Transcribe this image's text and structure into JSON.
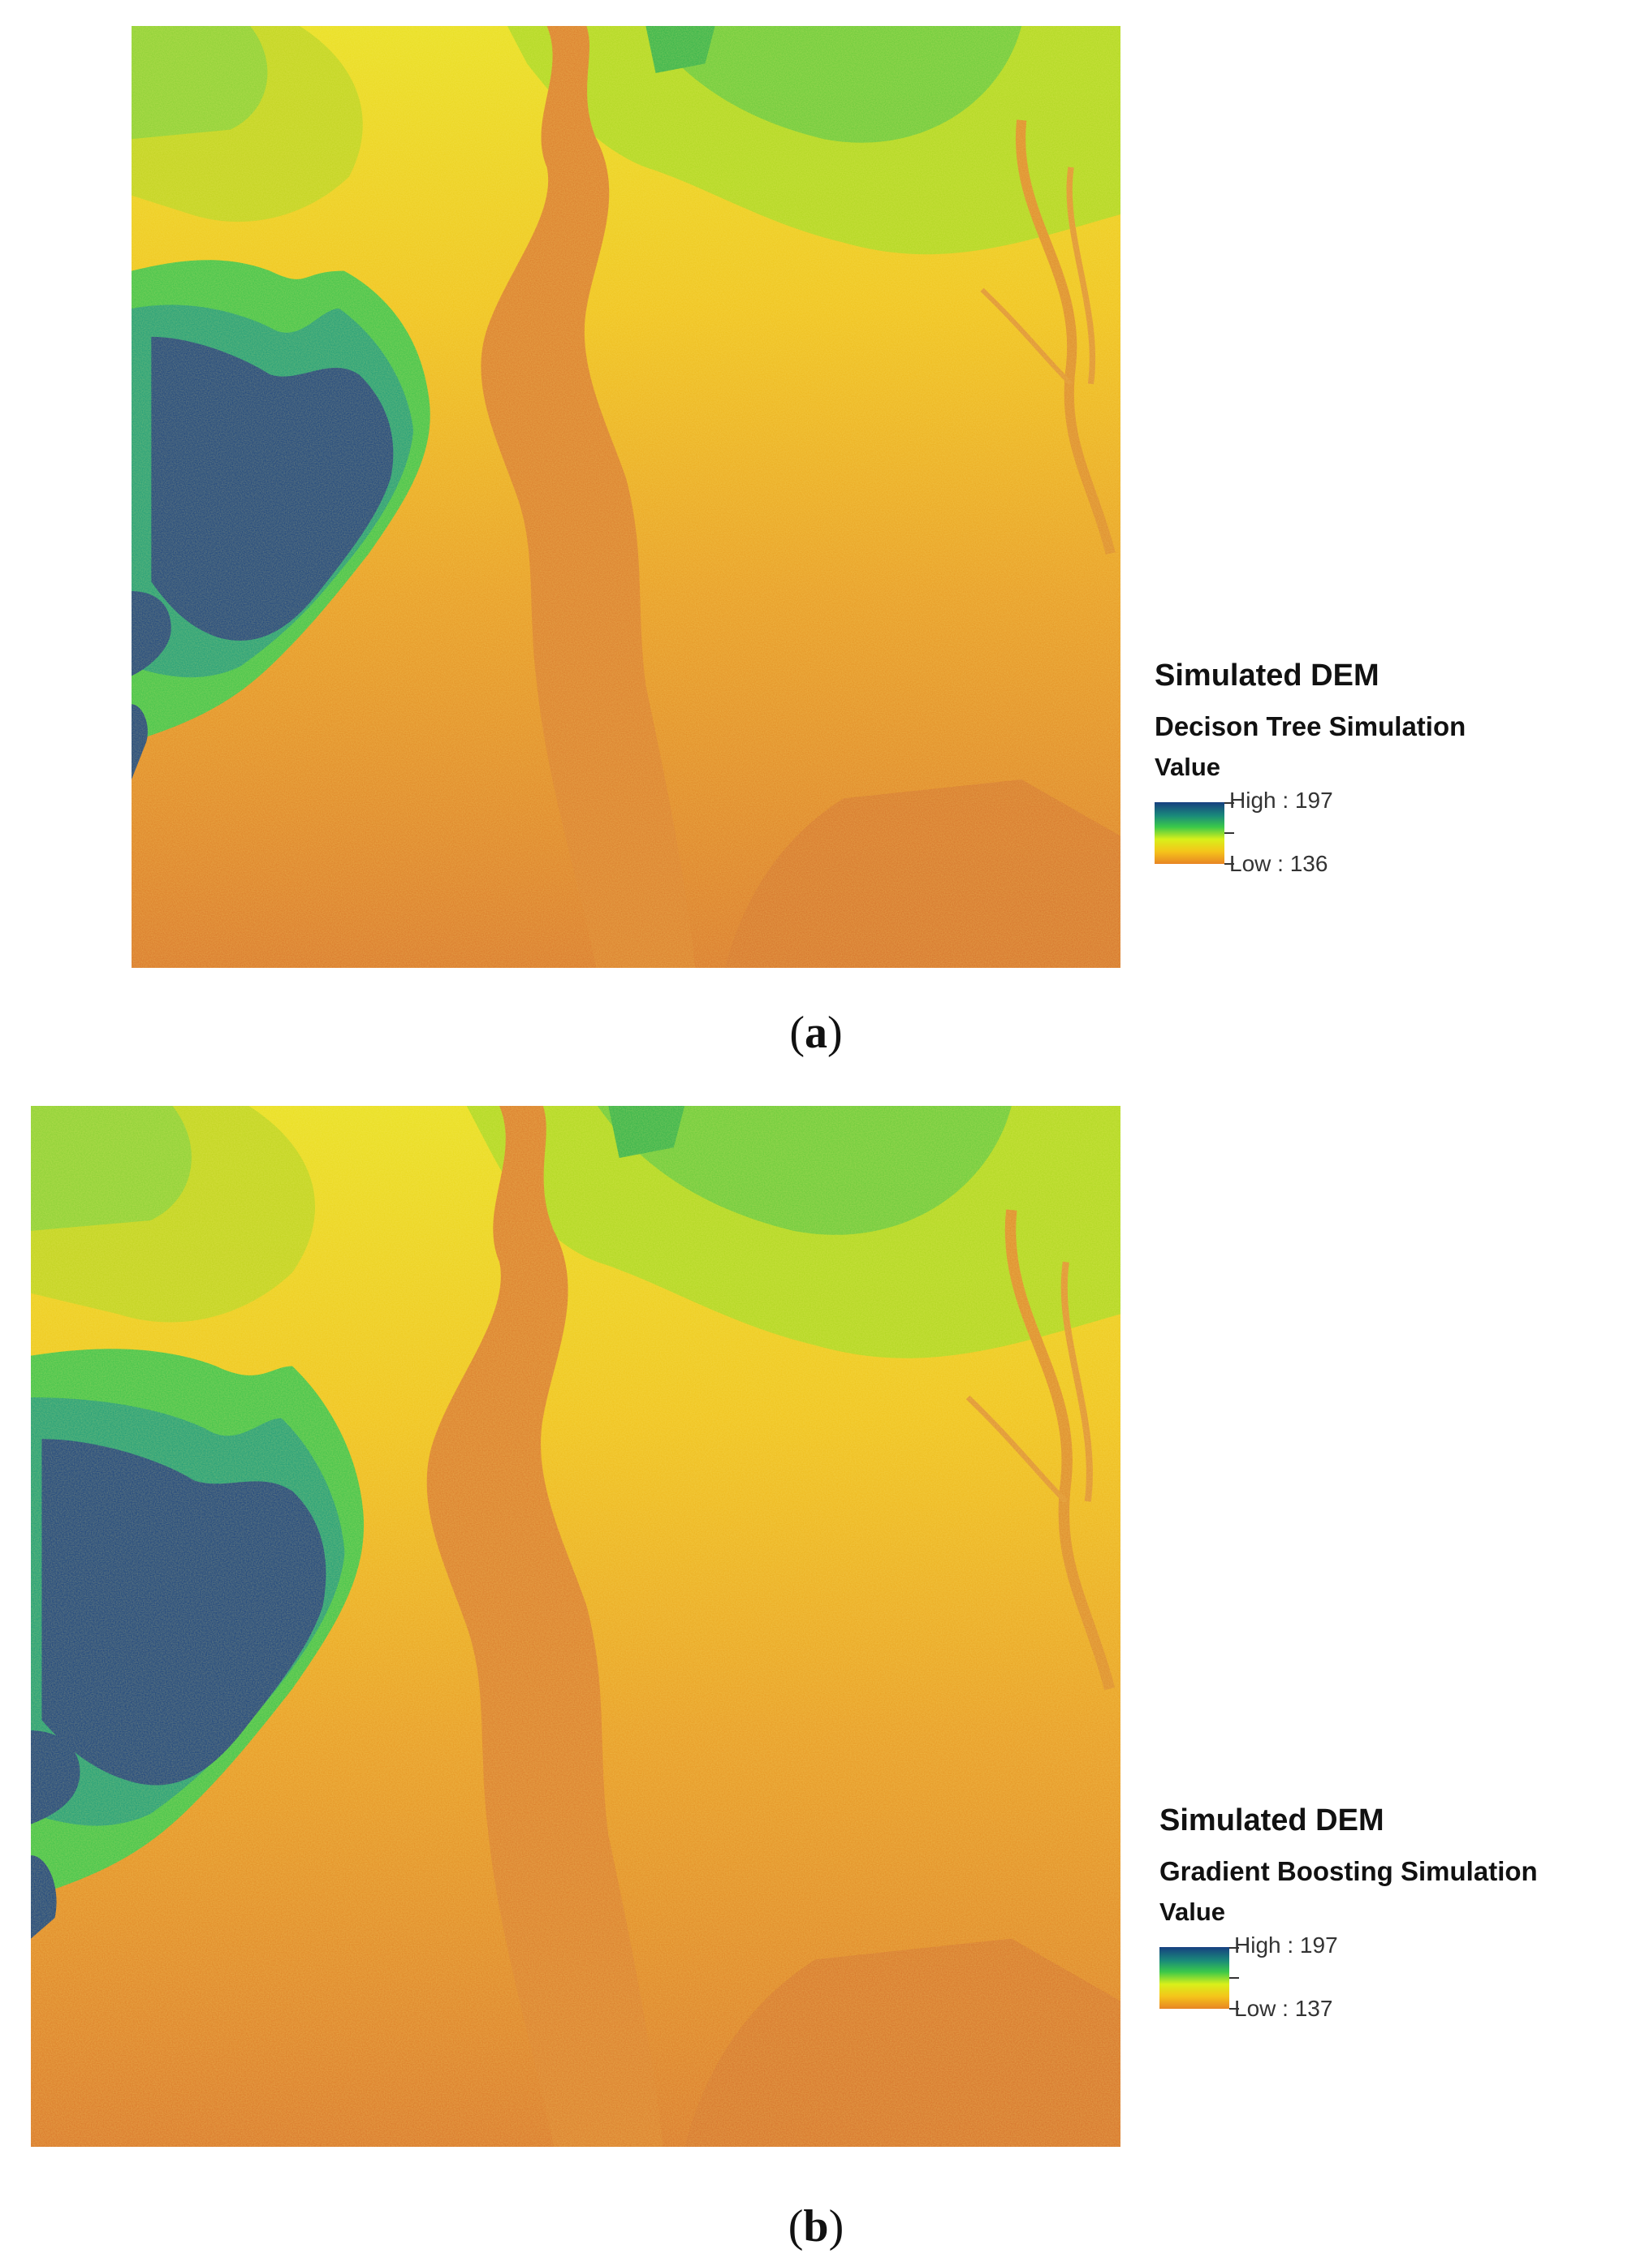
{
  "panels": [
    {
      "id": "a",
      "caption_open": "(",
      "caption_letter": "a",
      "caption_close": ")",
      "legend": {
        "title": "Simulated DEM",
        "subtitle": "Decison Tree Simulation",
        "value_heading": "Value",
        "high_label": "High : 197",
        "low_label": "Low : 136"
      }
    },
    {
      "id": "b",
      "caption_open": "(",
      "caption_letter": "b",
      "caption_close": ")",
      "legend": {
        "title": "Simulated DEM",
        "subtitle": "Gradient Boosting Simulation",
        "value_heading": "Value",
        "high_label": "High : 197",
        "low_label": "Low : 137"
      }
    }
  ],
  "colors": {
    "high": "#163f80",
    "mid_high": "#1a8a7a",
    "green": "#3ac84a",
    "yellow": "#d8f01a",
    "amber": "#f5c41a",
    "low": "#e88524",
    "lowest": "#cf6a2e"
  }
}
